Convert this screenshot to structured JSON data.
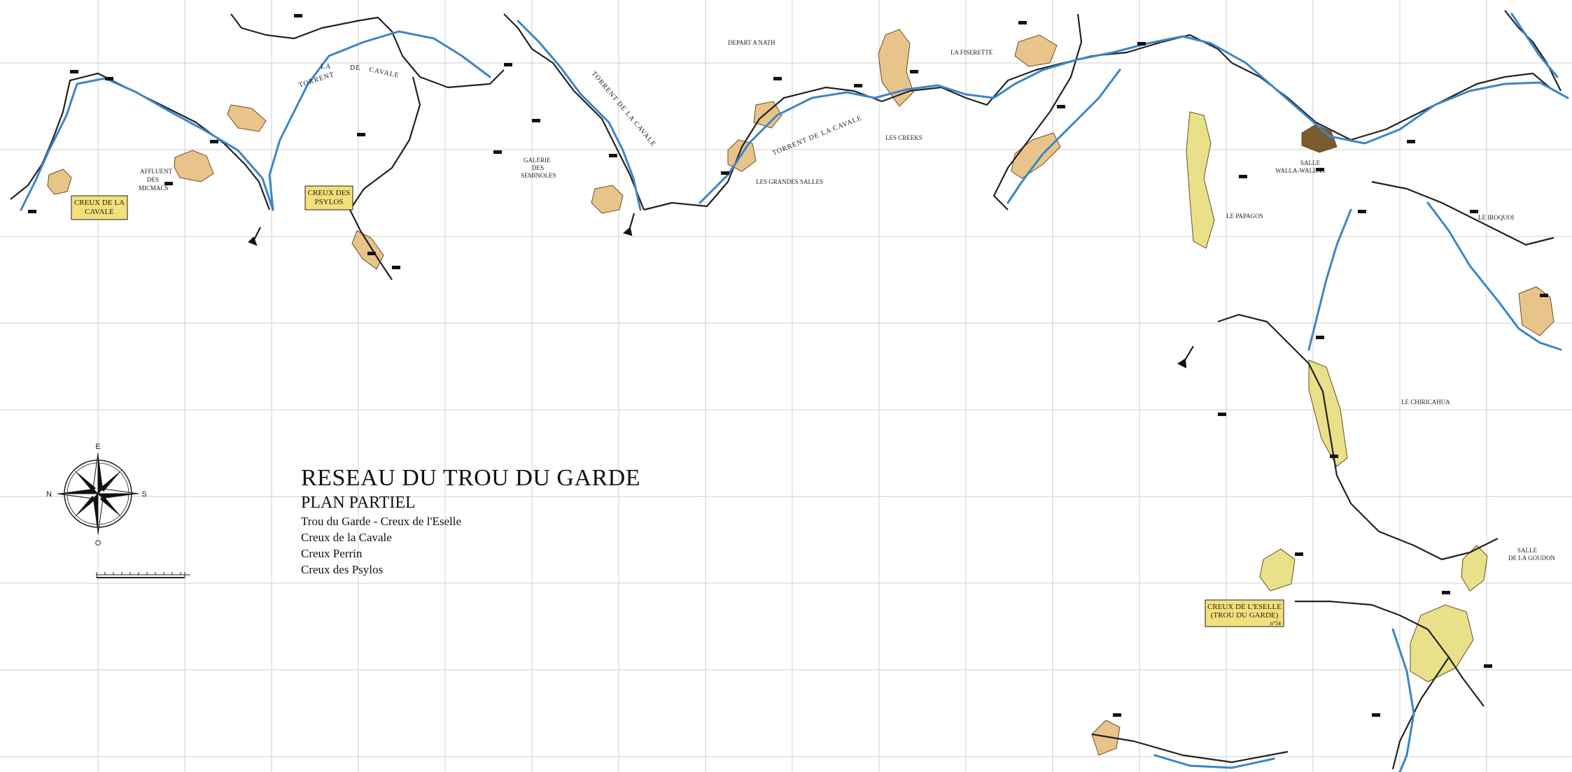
{
  "map": {
    "title": "RESEAU DU TROU DU GARDE",
    "subtitle": "PLAN PARTIEL",
    "networks": [
      "Trou du Garde - Creux de l'Eselle",
      "Creux de la Cavale",
      "Creux Perrin",
      "Creux des Psylos"
    ],
    "entrances": [
      {
        "line1": "CREUX DE LA",
        "line2": "CAVALE"
      },
      {
        "line1": "CREUX DES",
        "line2": "PSYLOS"
      },
      {
        "line1": "CREUX DE L'ESELLE",
        "line2": "(TROU DU GARDE)",
        "note": "n°54"
      }
    ],
    "labels": {
      "torrent_cavale_1a": "TORRENT",
      "torrent_cavale_1b": "DE",
      "torrent_cavale_1c": "LA",
      "torrent_cavale_1d": "CAVALE",
      "torrent_cavale_2": "TORRENT DE LA CAVALE",
      "torrent_cavale_3": "TORRENT DE LA CAVALE",
      "affluent_micmacs_1": "AFFLUENT",
      "affluent_micmacs_2": "DES",
      "affluent_micmacs_3": "MICMACS",
      "galerie_seminoles_1": "GALERIE",
      "galerie_seminoles_2": "DES",
      "galerie_seminoles_3": "SEMINOLES",
      "grandes_salles": "LES GRANDES SALLES",
      "creeks": "LES CREEKS",
      "fiserette": "LA FISERETTE",
      "depart": "DEPART A NATH",
      "salle_walla_1": "SALLE",
      "salle_walla_2": "WALLA-WALLAS",
      "papagos": "LE PAPAGOS",
      "iroquoi": "LE IROQUOI",
      "chiricahua": "LE CHIRICAHUA",
      "salle_goudon_1": "SALLE",
      "salle_goudon_2": "DE LA GOUDON"
    },
    "compass": {
      "north": "E",
      "south": "O",
      "west": "N",
      "east": "S"
    },
    "colors": {
      "river": "#3a86c8",
      "gallery_tan": "#e8c48a",
      "gallery_yellow": "#e9e08a",
      "wall": "#222222",
      "grid": "#cfcfcf",
      "entrance_box": "#f3e07a"
    }
  }
}
